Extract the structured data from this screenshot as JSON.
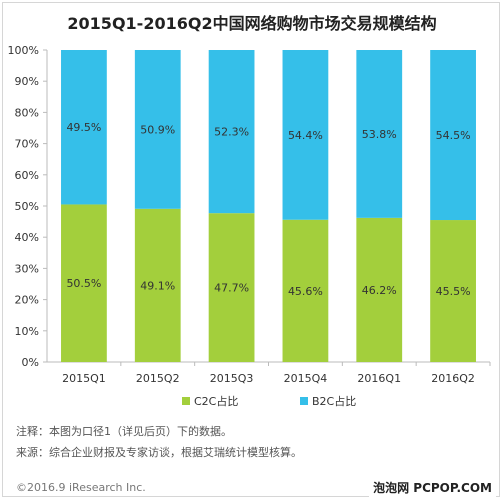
{
  "chart_data": {
    "type": "bar",
    "stacked": true,
    "title": "2015Q1-2016Q2中国网络购物市场交易规模结构",
    "categories": [
      "2015Q1",
      "2015Q2",
      "2015Q3",
      "2015Q4",
      "2016Q1",
      "2016Q2"
    ],
    "series": [
      {
        "name": "C2C占比",
        "values": [
          50.5,
          49.1,
          47.7,
          45.6,
          46.2,
          45.5
        ],
        "labels": [
          "50.5%",
          "49.1%",
          "47.7%",
          "45.6%",
          "46.2%",
          "45.5%"
        ],
        "color": "#a3cf3c"
      },
      {
        "name": "B2C占比",
        "values": [
          49.5,
          50.9,
          52.3,
          54.4,
          53.8,
          54.5
        ],
        "labels": [
          "49.5%",
          "50.9%",
          "52.3%",
          "54.4%",
          "53.8%",
          "54.5%"
        ],
        "color": "#35bfe9"
      }
    ],
    "ylim": [
      0,
      100
    ],
    "yticks": [
      "0%",
      "10%",
      "20%",
      "30%",
      "40%",
      "50%",
      "60%",
      "70%",
      "80%",
      "90%",
      "100%"
    ],
    "grid": false,
    "legend_position": "bottom"
  },
  "notes": {
    "note": "注释：本图为口径1（详见后页）下的数据。",
    "source": "来源：综合企业财报及专家访谈，根据艾瑞统计模型核算。",
    "copyright": "©2016.9 iResearch Inc.",
    "watermark": "泡泡网 PCPOP.COM"
  }
}
